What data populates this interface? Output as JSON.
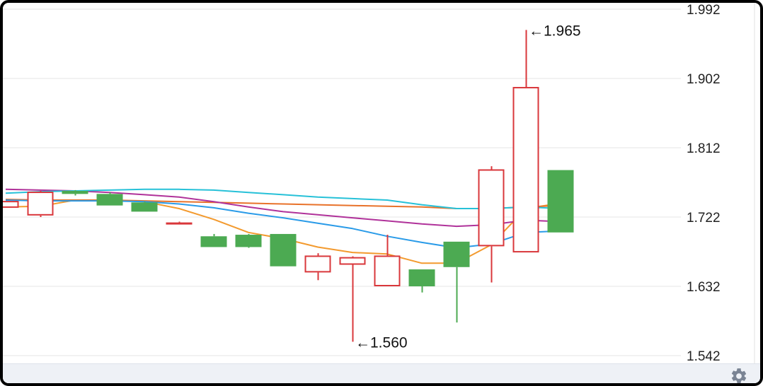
{
  "chart_data": {
    "type": "candlestick",
    "title": "",
    "ylim": [
      1.542,
      1.992
    ],
    "yticks": [
      1.542,
      1.632,
      1.722,
      1.812,
      1.902,
      1.992
    ],
    "ytick_labels": [
      "1.542",
      "1.632",
      "1.722",
      "1.812",
      "1.902",
      "1.992"
    ],
    "grid": true,
    "up_color": "#4caa52",
    "down_color": "#d9373b",
    "candles": [
      {
        "i": 0,
        "open": 1.743,
        "close": 1.734,
        "high": 1.743,
        "low": 1.734
      },
      {
        "i": 1,
        "open": 1.755,
        "close": 1.724,
        "high": 1.756,
        "low": 1.722
      },
      {
        "i": 2,
        "open": 1.752,
        "close": 1.756,
        "high": 1.757,
        "low": 1.75
      },
      {
        "i": 3,
        "open": 1.737,
        "close": 1.752,
        "high": 1.754,
        "low": 1.737
      },
      {
        "i": 4,
        "open": 1.729,
        "close": 1.741,
        "high": 1.742,
        "low": 1.729
      },
      {
        "i": 5,
        "open": 1.715,
        "close": 1.714,
        "high": 1.716,
        "low": 1.713
      },
      {
        "i": 6,
        "open": 1.683,
        "close": 1.697,
        "high": 1.7,
        "low": 1.683
      },
      {
        "i": 7,
        "open": 1.683,
        "close": 1.699,
        "high": 1.7,
        "low": 1.682
      },
      {
        "i": 8,
        "open": 1.658,
        "close": 1.7,
        "high": 1.7,
        "low": 1.658
      },
      {
        "i": 9,
        "open": 1.672,
        "close": 1.65,
        "high": 1.675,
        "low": 1.64
      },
      {
        "i": 10,
        "open": 1.67,
        "close": 1.66,
        "high": 1.671,
        "low": 1.56
      },
      {
        "i": 11,
        "open": 1.672,
        "close": 1.632,
        "high": 1.699,
        "low": 1.632
      },
      {
        "i": 12,
        "open": 1.632,
        "close": 1.654,
        "high": 1.654,
        "low": 1.624
      },
      {
        "i": 13,
        "open": 1.657,
        "close": 1.69,
        "high": 1.69,
        "low": 1.585
      },
      {
        "i": 14,
        "open": 1.784,
        "close": 1.684,
        "high": 1.788,
        "low": 1.637
      },
      {
        "i": 15,
        "open": 1.891,
        "close": 1.676,
        "high": 1.965,
        "low": 1.676
      },
      {
        "i": 16,
        "open": 1.702,
        "close": 1.783,
        "high": 1.783,
        "low": 1.702
      }
    ],
    "series": [
      {
        "color": "#f39a2e",
        "values": [
          1.735,
          1.736,
          1.744,
          1.744,
          1.742,
          1.733,
          1.719,
          1.702,
          1.694,
          1.683,
          1.676,
          1.674,
          1.662,
          1.662,
          1.686,
          1.733,
          1.74
        ]
      },
      {
        "color": "#e8722a",
        "values": [
          1.745,
          1.744,
          1.744,
          1.744,
          1.743,
          1.742,
          1.741,
          1.74,
          1.739,
          1.738,
          1.737,
          1.736,
          1.735,
          1.733,
          1.733,
          1.735,
          1.737
        ]
      },
      {
        "color": "#2a9be8",
        "values": [
          1.744,
          1.743,
          1.743,
          1.743,
          1.742,
          1.739,
          1.734,
          1.727,
          1.721,
          1.714,
          1.707,
          1.697,
          1.689,
          1.682,
          1.687,
          1.702,
          1.704
        ]
      },
      {
        "color": "#b0329a",
        "values": [
          1.758,
          1.757,
          1.756,
          1.754,
          1.751,
          1.748,
          1.742,
          1.735,
          1.729,
          1.725,
          1.721,
          1.717,
          1.713,
          1.71,
          1.712,
          1.718,
          1.716
        ]
      },
      {
        "color": "#27c1d8",
        "values": [
          1.753,
          1.755,
          1.756,
          1.757,
          1.758,
          1.758,
          1.757,
          1.754,
          1.751,
          1.748,
          1.746,
          1.744,
          1.738,
          1.733,
          1.733,
          1.735,
          1.733
        ]
      }
    ],
    "annotations": [
      {
        "candle": 15,
        "value": 1.965,
        "text": "←1.965"
      },
      {
        "candle": 10,
        "value": 1.56,
        "text": "←1.560"
      }
    ]
  },
  "toolbar": {
    "settings_icon": "gear-icon"
  }
}
